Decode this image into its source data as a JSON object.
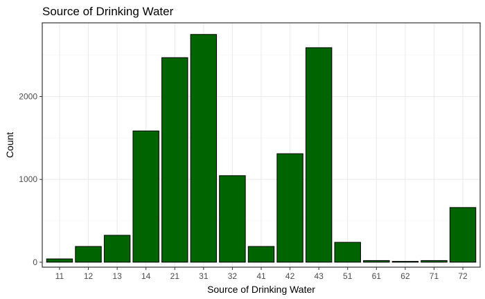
{
  "chart_data": {
    "type": "bar",
    "title": "Source of Drinking Water",
    "xlabel": "Source of Drinking Water",
    "ylabel": "Count",
    "categories": [
      "11",
      "12",
      "13",
      "14",
      "21",
      "31",
      "32",
      "41",
      "42",
      "43",
      "51",
      "61",
      "62",
      "71",
      "72"
    ],
    "values": [
      40,
      190,
      325,
      1585,
      2470,
      2750,
      1045,
      190,
      1310,
      2590,
      240,
      20,
      10,
      20,
      660
    ],
    "ylim": [
      -60,
      2890
    ],
    "yticks": [
      0,
      1000,
      2000
    ],
    "ytick_labels": [
      "0",
      "1000",
      "2000"
    ],
    "grid": true,
    "bar_color": "#006400",
    "bar_outline": "#000000",
    "theme": "bw"
  }
}
